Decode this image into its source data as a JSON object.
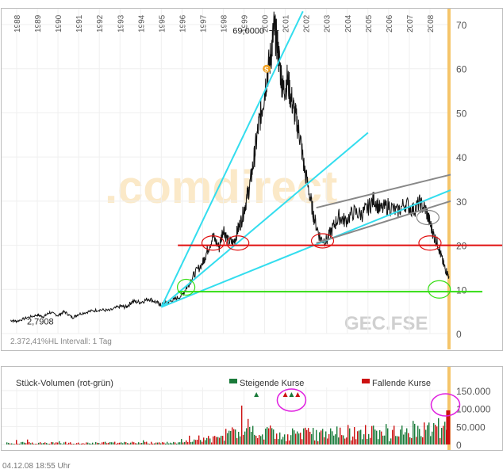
{
  "symbol": "GEC.FSE",
  "watermark": ".comdirect",
  "info_text": "2.372,41%HL Intervall: 1 Tag",
  "footer": "04.12.08   18:55 Uhr",
  "chart_data": [
    {
      "type": "line",
      "name": "price",
      "x_ticks": [
        "1988",
        "1989",
        "1990",
        "1991",
        "1992",
        "1993",
        "1994",
        "1995",
        "1996",
        "1997",
        "1998",
        "1999",
        "2000",
        "2001",
        "2002",
        "2003",
        "2004",
        "2005",
        "2006",
        "2007",
        "2008"
      ],
      "y_ticks": [
        "70",
        "60",
        "50",
        "40",
        "30",
        "20",
        "10",
        "0"
      ],
      "ylim": [
        0,
        70
      ],
      "xlim": [
        1987.5,
        2009.0
      ],
      "annotations": {
        "high_label": "69,0000",
        "low_label": "2,7908",
        "marker": "S"
      },
      "series": [
        {
          "x": [
            1987.7,
            1988.0,
            1988.5,
            1989.0,
            1989.3,
            1989.6,
            1990.0,
            1990.3,
            1990.7,
            1991.0,
            1991.5,
            1992.0,
            1992.5,
            1993.0,
            1993.3,
            1993.6,
            1994.0,
            1994.4,
            1994.8,
            1995.0,
            1995.3,
            1995.6,
            1996.0,
            1996.3,
            1996.6,
            1997.0,
            1997.2,
            1997.5,
            1997.8,
            1998.0,
            1998.2,
            1998.5,
            1998.7,
            1998.9,
            1999.1,
            1999.3,
            1999.5,
            1999.7,
            1999.9,
            2000.1,
            2000.3,
            2000.45,
            2000.6,
            2000.75,
            2000.9,
            2001.1,
            2001.3,
            2001.5,
            2001.7,
            2001.9,
            2002.2,
            2002.4,
            2002.7,
            2003.0,
            2003.3,
            2003.6,
            2003.9,
            2004.3,
            2004.7,
            2005.0,
            2005.3,
            2005.6,
            2006.0,
            2006.4,
            2006.8,
            2007.2,
            2007.5,
            2007.8,
            2008.0,
            2008.2,
            2008.4,
            2008.6,
            2008.75,
            2008.92
          ],
          "y": [
            3.0,
            2.8,
            3.6,
            4.2,
            3.8,
            4.8,
            4.1,
            5.0,
            3.6,
            4.4,
            5.0,
            5.4,
            5.2,
            6.2,
            6.0,
            7.3,
            7.1,
            7.9,
            7.0,
            6.4,
            7.1,
            7.6,
            8.7,
            11.0,
            13.5,
            16.0,
            18.5,
            22.0,
            19.5,
            24.0,
            21.0,
            20.5,
            23.5,
            26.0,
            30.0,
            34.0,
            40.0,
            47.0,
            52.0,
            58.0,
            63.0,
            69.0,
            66.0,
            60.0,
            55.0,
            57.5,
            53.0,
            49.0,
            45.0,
            38.0,
            31.0,
            26.0,
            21.5,
            21.0,
            24.0,
            26.5,
            25.5,
            27.5,
            27.0,
            28.5,
            30.5,
            28.0,
            29.0,
            27.5,
            29.5,
            28.0,
            29.5,
            28.0,
            25.0,
            22.0,
            20.0,
            16.5,
            14.5,
            13.0
          ]
        }
      ]
    },
    {
      "type": "bar",
      "name": "volume",
      "title": "Stück-Volumen (rot-grün)",
      "legend": [
        "Steigende Kurse",
        "Fallende Kurse"
      ],
      "colors": [
        "#1a7a3a",
        "#cc1111"
      ],
      "y_ticks": [
        "150.000",
        "100.000",
        "50.000",
        "0"
      ],
      "ylim": [
        0,
        150000
      ]
    }
  ]
}
